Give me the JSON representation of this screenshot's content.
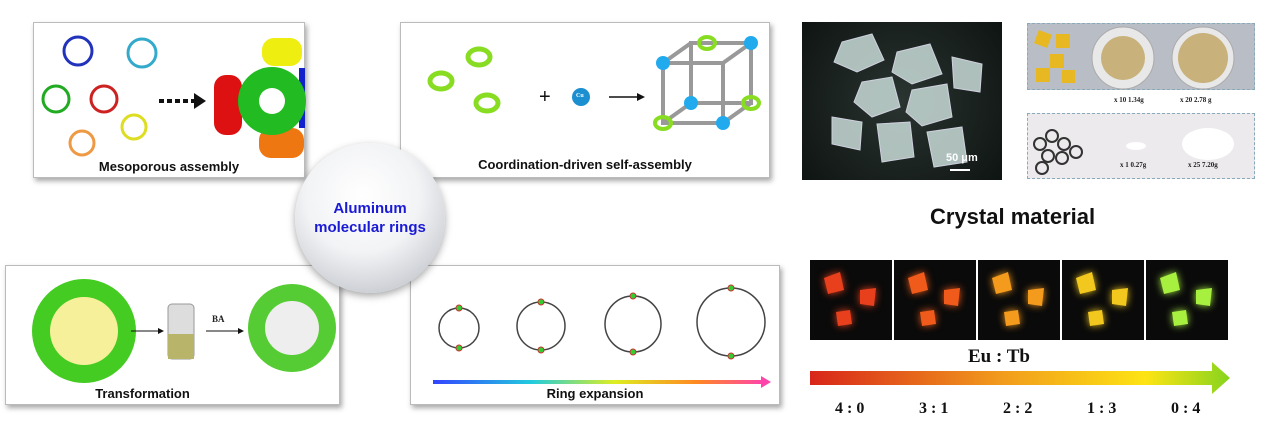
{
  "center": {
    "title": "Aluminum molecular rings"
  },
  "panels": {
    "mesoporous": "Mesoporous assembly",
    "coordination": "Coordination-driven self-assembly",
    "coordination_ion": "Cu",
    "transformation": "Transformation",
    "transformation_reagent": "BA",
    "ring_expansion": "Ring expansion"
  },
  "crystal": {
    "title": "Crystal material",
    "scale_bar": "50 μm",
    "yield_labels_top": [
      "x 10  1.34g",
      "x 20  2.78 g"
    ],
    "yield_labels_bottom": [
      "x 1   0.27g",
      "x 25   7.20g"
    ]
  },
  "luminescence": {
    "label": "Eu : Tb",
    "ratios": [
      "4 : 0",
      "3 : 1",
      "2 : 2",
      "1 : 3",
      "0 : 4"
    ],
    "crystal_colors": [
      "#e8401c",
      "#f05a1a",
      "#f49a1c",
      "#f2c81e",
      "#a8f040"
    ],
    "gradient_colors": [
      "#d8261a",
      "#f19a1c",
      "#fde414",
      "#86d41e"
    ]
  }
}
